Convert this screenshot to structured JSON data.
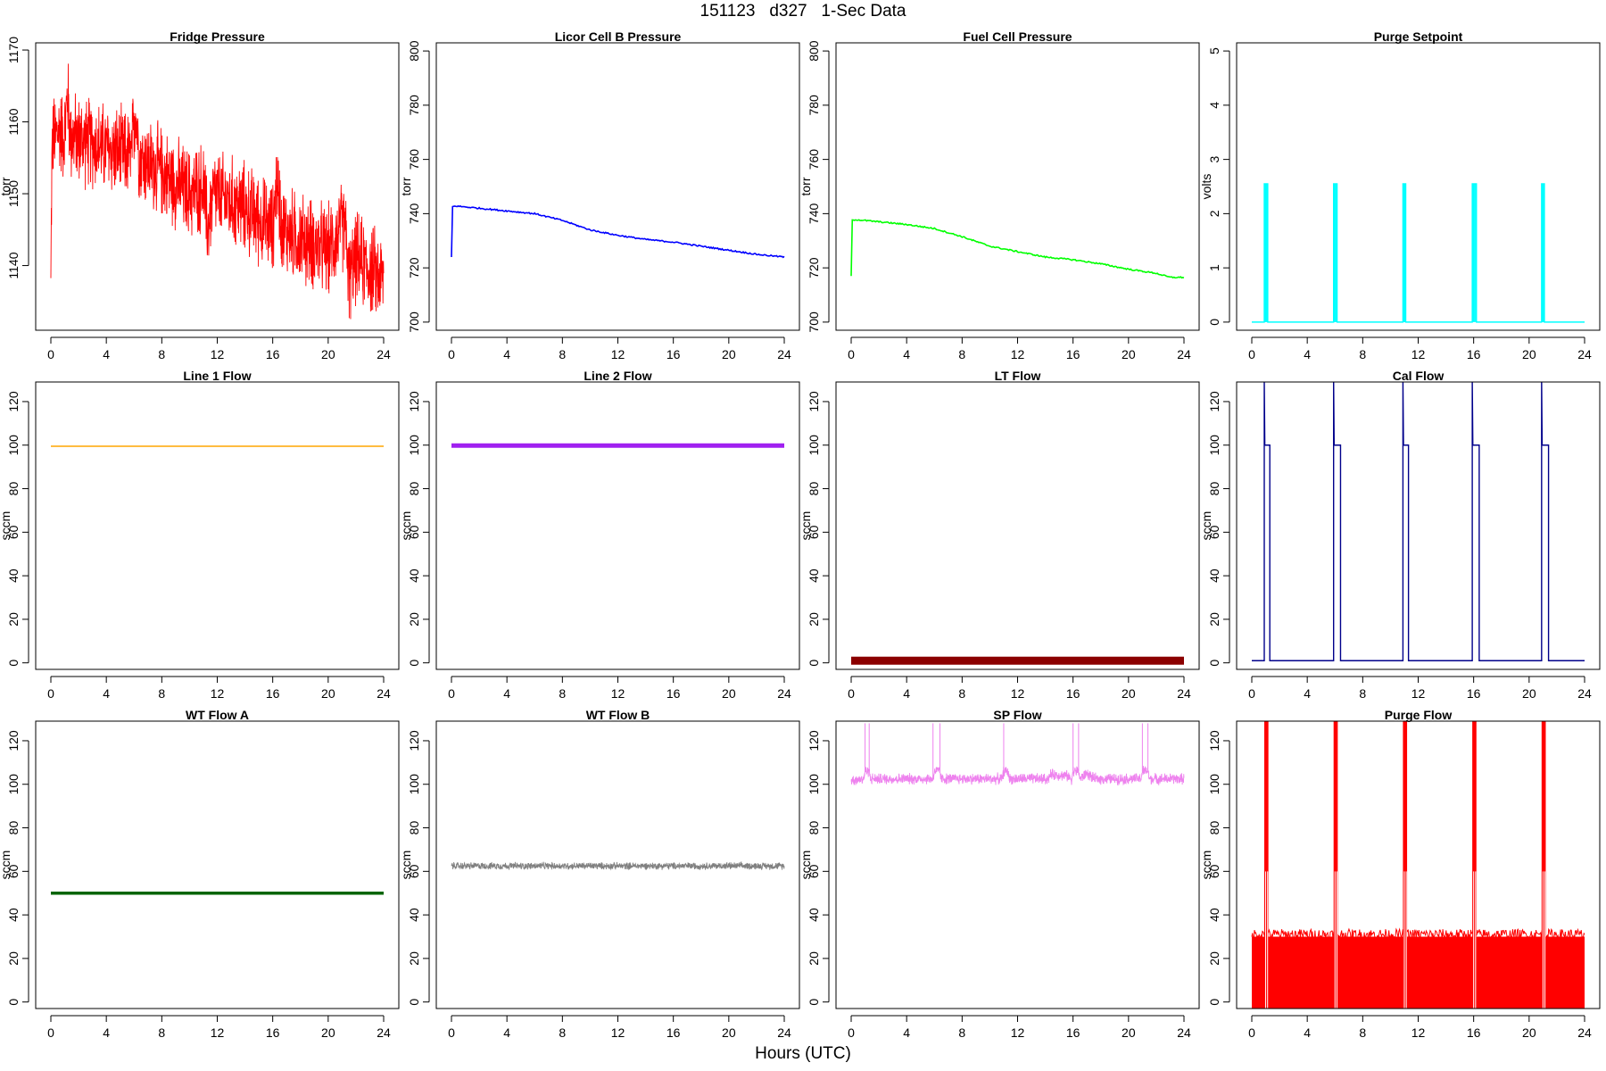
{
  "figure": {
    "title": "151123   d327   1-Sec Data",
    "xlabel": "Hours (UTC)"
  },
  "chart_data": [
    {
      "type": "line",
      "title": "Fridge Pressure",
      "ylabel": "torr",
      "xlim": [
        0,
        24
      ],
      "ylim": [
        1131,
        1171
      ],
      "xticks": [
        0,
        4,
        8,
        12,
        16,
        20,
        24
      ],
      "yticks": [
        1140,
        1150,
        1160,
        1170
      ],
      "color": "#ff0000",
      "style": "noisy",
      "noise": 5,
      "series": [
        {
          "x": [
            0,
            0.05,
            0.1,
            0.6,
            1.0,
            1.2,
            1.4,
            3,
            5.8,
            6.1,
            6.4,
            8,
            10,
            11,
            11.3,
            11.7,
            14,
            16,
            16.3,
            16.7,
            20,
            21.2,
            21.5,
            22,
            24
          ],
          "y": [
            1137,
            1150,
            1157,
            1159,
            1158,
            1164,
            1158,
            1157,
            1155,
            1162,
            1155,
            1153,
            1150,
            1151,
            1145,
            1150,
            1148,
            1145,
            1152,
            1145,
            1142,
            1146,
            1138,
            1141,
            1138
          ]
        }
      ]
    },
    {
      "type": "line",
      "title": "Licor Cell B Pressure",
      "ylabel": "torr",
      "xlim": [
        0,
        24
      ],
      "ylim": [
        697,
        803
      ],
      "xticks": [
        0,
        4,
        8,
        12,
        16,
        20,
        24
      ],
      "yticks": [
        700,
        720,
        740,
        760,
        780,
        800
      ],
      "color": "#0000ff",
      "style": "line",
      "series": [
        {
          "x": [
            0,
            0.05,
            0.3,
            2,
            4,
            6,
            8,
            10,
            12,
            14,
            16,
            18,
            20,
            22,
            24
          ],
          "y": [
            724,
            742.5,
            742.8,
            742,
            741,
            740,
            737.5,
            734,
            732,
            730.5,
            729.5,
            728,
            726.5,
            725,
            724
          ]
        }
      ]
    },
    {
      "type": "line",
      "title": "Fuel Cell Pressure",
      "ylabel": "torr",
      "xlim": [
        0,
        24
      ],
      "ylim": [
        697,
        803
      ],
      "xticks": [
        0,
        4,
        8,
        12,
        16,
        20,
        24
      ],
      "yticks": [
        700,
        720,
        740,
        760,
        780,
        800
      ],
      "color": "#00ff00",
      "style": "line",
      "series": [
        {
          "x": [
            0,
            0.05,
            0.3,
            2,
            4,
            6,
            8,
            10,
            12,
            14,
            16,
            18,
            20,
            22,
            23,
            24
          ],
          "y": [
            717,
            737.5,
            737.8,
            737,
            736,
            734.5,
            731.5,
            728,
            726,
            724,
            723,
            721.5,
            719.5,
            718,
            716.5,
            716.5
          ]
        }
      ]
    },
    {
      "type": "line",
      "title": "Purge Setpoint",
      "ylabel": "volts",
      "xlim": [
        0,
        24
      ],
      "ylim": [
        -0.15,
        5.15
      ],
      "xticks": [
        0,
        4,
        8,
        12,
        16,
        20,
        24
      ],
      "yticks": [
        0,
        1,
        2,
        3,
        4,
        5
      ],
      "color": "#00ffff",
      "style": "pulses",
      "base": 0,
      "pulses": [
        {
          "start": 0.9,
          "end": 1.15,
          "level": 2.55
        },
        {
          "start": 5.9,
          "end": 6.15,
          "level": 2.55
        },
        {
          "start": 10.9,
          "end": 11.1,
          "level": 2.55
        },
        {
          "start": 15.9,
          "end": 16.2,
          "level": 2.55
        },
        {
          "start": 20.9,
          "end": 21.1,
          "level": 2.55
        }
      ]
    },
    {
      "type": "line",
      "title": "Line 1 Flow",
      "ylabel": "sccm",
      "xlim": [
        0,
        24
      ],
      "ylim": [
        -3,
        129
      ],
      "xticks": [
        0,
        4,
        8,
        12,
        16,
        20,
        24
      ],
      "yticks": [
        0,
        20,
        40,
        60,
        80,
        100,
        120
      ],
      "color": "#ffa500",
      "style": "flat",
      "value": 99.5,
      "width": 1.5
    },
    {
      "type": "line",
      "title": "Line 2 Flow",
      "ylabel": "sccm",
      "xlim": [
        0,
        24
      ],
      "ylim": [
        -3,
        129
      ],
      "xticks": [
        0,
        4,
        8,
        12,
        16,
        20,
        24
      ],
      "yticks": [
        0,
        20,
        40,
        60,
        80,
        100,
        120
      ],
      "color": "#a020f0",
      "style": "flat",
      "value": 99.8,
      "width": 5
    },
    {
      "type": "line",
      "title": "LT Flow",
      "ylabel": "sccm",
      "xlim": [
        0,
        24
      ],
      "ylim": [
        -3,
        129
      ],
      "xticks": [
        0,
        4,
        8,
        12,
        16,
        20,
        24
      ],
      "yticks": [
        0,
        20,
        40,
        60,
        80,
        100,
        120
      ],
      "color": "#8b0000",
      "style": "flat",
      "value": 1,
      "width": 9
    },
    {
      "type": "line",
      "title": "Cal Flow",
      "ylabel": "sccm",
      "xlim": [
        0,
        24
      ],
      "ylim": [
        -3,
        129
      ],
      "xticks": [
        0,
        4,
        8,
        12,
        16,
        20,
        24
      ],
      "yticks": [
        0,
        20,
        40,
        60,
        80,
        100,
        120
      ],
      "color": "#00008b",
      "style": "pulses",
      "base": 1,
      "spike": 130,
      "pulses": [
        {
          "start": 0.9,
          "end": 1.3,
          "level": 100
        },
        {
          "start": 5.9,
          "end": 6.4,
          "level": 100
        },
        {
          "start": 10.9,
          "end": 11.3,
          "level": 100
        },
        {
          "start": 15.9,
          "end": 16.4,
          "level": 100
        },
        {
          "start": 20.9,
          "end": 21.4,
          "level": 100
        }
      ]
    },
    {
      "type": "line",
      "title": "WT Flow A",
      "ylabel": "sccm",
      "xlim": [
        0,
        24
      ],
      "ylim": [
        -3,
        129
      ],
      "xticks": [
        0,
        4,
        8,
        12,
        16,
        20,
        24
      ],
      "yticks": [
        0,
        20,
        40,
        60,
        80,
        100,
        120
      ],
      "color": "#006400",
      "style": "flat",
      "value": 50,
      "width": 3.5
    },
    {
      "type": "line",
      "title": "WT Flow B",
      "ylabel": "sccm",
      "xlim": [
        0,
        24
      ],
      "ylim": [
        -3,
        129
      ],
      "xticks": [
        0,
        4,
        8,
        12,
        16,
        20,
        24
      ],
      "yticks": [
        0,
        20,
        40,
        60,
        80,
        100,
        120
      ],
      "color": "#808080",
      "style": "noisy",
      "noise": 1.3,
      "series": [
        {
          "x": [
            0,
            24
          ],
          "y": [
            62.5,
            62.5
          ]
        }
      ]
    },
    {
      "type": "line",
      "title": "SP Flow",
      "ylabel": "sccm",
      "xlim": [
        0,
        24
      ],
      "ylim": [
        -3,
        129
      ],
      "xticks": [
        0,
        4,
        8,
        12,
        16,
        20,
        24
      ],
      "yticks": [
        0,
        20,
        40,
        60,
        80,
        100,
        120
      ],
      "color": "#ee82ee",
      "style": "noisy",
      "noise": 2,
      "spikes": [
        1.0,
        1.3,
        5.9,
        6.4,
        11.0,
        16.0,
        16.4,
        21.0,
        21.4
      ],
      "spike": 128,
      "series": [
        {
          "x": [
            0,
            0.9,
            1.0,
            1.3,
            1.4,
            5.9,
            6.0,
            6.4,
            6.5,
            10.9,
            11.0,
            11.3,
            11.4,
            14.2,
            14.4,
            15.5,
            15.9,
            16.0,
            16.4,
            16.5,
            17.0,
            17.5,
            20.9,
            21.0,
            21.4,
            21.5,
            24
          ],
          "y": [
            102,
            102.5,
            106,
            106,
            102.5,
            102.5,
            106,
            106,
            102.5,
            102.5,
            106,
            106,
            102.5,
            102.5,
            104.5,
            104,
            102.5,
            106,
            106,
            102.5,
            105,
            102.5,
            102.5,
            106,
            106,
            102.5,
            102.5
          ]
        }
      ]
    },
    {
      "type": "line",
      "title": "Purge Flow",
      "ylabel": "sccm",
      "xlim": [
        0,
        24
      ],
      "ylim": [
        -3,
        129
      ],
      "xticks": [
        0,
        4,
        8,
        12,
        16,
        20,
        24
      ],
      "yticks": [
        0,
        20,
        40,
        60,
        80,
        100,
        120
      ],
      "color": "#ff0000",
      "style": "band",
      "band": [
        -3,
        30
      ],
      "pulses": [
        {
          "start": 0.9,
          "end": 1.2
        },
        {
          "start": 5.9,
          "end": 6.2
        },
        {
          "start": 10.9,
          "end": 11.2
        },
        {
          "start": 15.9,
          "end": 16.2
        },
        {
          "start": 20.9,
          "end": 21.2
        }
      ]
    }
  ]
}
